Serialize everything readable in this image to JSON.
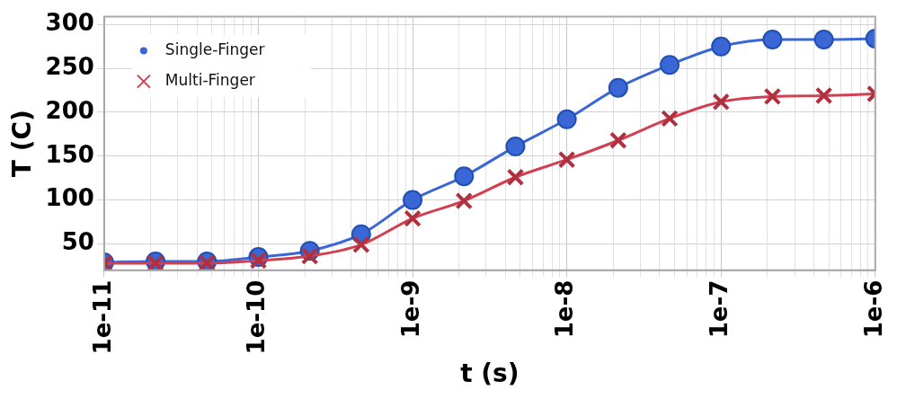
{
  "chart_data": {
    "type": "line",
    "xlabel": "t (s)",
    "ylabel": "T (C)",
    "x": [
      1e-11,
      2.154e-11,
      4.642e-11,
      1e-10,
      2.154e-10,
      4.642e-10,
      1e-09,
      2.154e-09,
      4.642e-09,
      1e-08,
      2.154e-08,
      4.642e-08,
      1e-07,
      2.154e-07,
      4.642e-07,
      1e-06
    ],
    "series": [
      {
        "name": "Single-Finger",
        "color": "#3a66d6",
        "marker": "circle",
        "values": [
          29,
          30,
          30,
          35,
          42,
          61,
          100,
          127,
          161,
          192,
          228,
          254,
          275,
          283,
          283,
          284
        ]
      },
      {
        "name": "Multi-Finger",
        "color": "#d04050",
        "marker": "cross",
        "values": [
          28,
          28,
          28,
          31,
          36,
          49,
          79,
          99,
          126,
          146,
          168,
          193,
          212,
          218,
          219,
          221
        ]
      }
    ],
    "log": "x",
    "xlim": [
      1e-11,
      1e-06
    ],
    "ylim": [
      20,
      309
    ],
    "xticks": [
      {
        "value": 1e-11,
        "label": "1e-11"
      },
      {
        "value": 2e-11,
        "label": null
      },
      {
        "value": 3e-11,
        "label": null
      },
      {
        "value": 4e-11,
        "label": null
      },
      {
        "value": 5e-11,
        "label": null
      },
      {
        "value": 6e-11,
        "label": null
      },
      {
        "value": 7e-11,
        "label": null
      },
      {
        "value": 8e-11,
        "label": null
      },
      {
        "value": 9e-11,
        "label": null
      },
      {
        "value": 1e-10,
        "label": "1e-10"
      },
      {
        "value": 2e-10,
        "label": null
      },
      {
        "value": 3e-10,
        "label": null
      },
      {
        "value": 4e-10,
        "label": null
      },
      {
        "value": 5e-10,
        "label": null
      },
      {
        "value": 6e-10,
        "label": null
      },
      {
        "value": 7e-10,
        "label": null
      },
      {
        "value": 8e-10,
        "label": null
      },
      {
        "value": 9e-10,
        "label": null
      },
      {
        "value": 1e-09,
        "label": "1e-9"
      },
      {
        "value": 2e-09,
        "label": null
      },
      {
        "value": 3e-09,
        "label": null
      },
      {
        "value": 4e-09,
        "label": null
      },
      {
        "value": 5e-09,
        "label": null
      },
      {
        "value": 6e-09,
        "label": null
      },
      {
        "value": 7e-09,
        "label": null
      },
      {
        "value": 8e-09,
        "label": null
      },
      {
        "value": 9e-09,
        "label": null
      },
      {
        "value": 1e-08,
        "label": "1e-8"
      },
      {
        "value": 2e-08,
        "label": null
      },
      {
        "value": 3e-08,
        "label": null
      },
      {
        "value": 4e-08,
        "label": null
      },
      {
        "value": 5e-08,
        "label": null
      },
      {
        "value": 6e-08,
        "label": null
      },
      {
        "value": 7e-08,
        "label": null
      },
      {
        "value": 8e-08,
        "label": null
      },
      {
        "value": 9e-08,
        "label": null
      },
      {
        "value": 1e-07,
        "label": "1e-7"
      },
      {
        "value": 2e-07,
        "label": null
      },
      {
        "value": 3e-07,
        "label": null
      },
      {
        "value": 4e-07,
        "label": null
      },
      {
        "value": 5e-07,
        "label": null
      },
      {
        "value": 6e-07,
        "label": null
      },
      {
        "value": 7e-07,
        "label": null
      },
      {
        "value": 8e-07,
        "label": null
      },
      {
        "value": 9e-07,
        "label": null
      },
      {
        "value": 1e-06,
        "label": "1e-6"
      }
    ],
    "yticks": [
      50,
      100,
      150,
      200,
      250,
      300
    ],
    "grid": true,
    "legend": "top left"
  }
}
